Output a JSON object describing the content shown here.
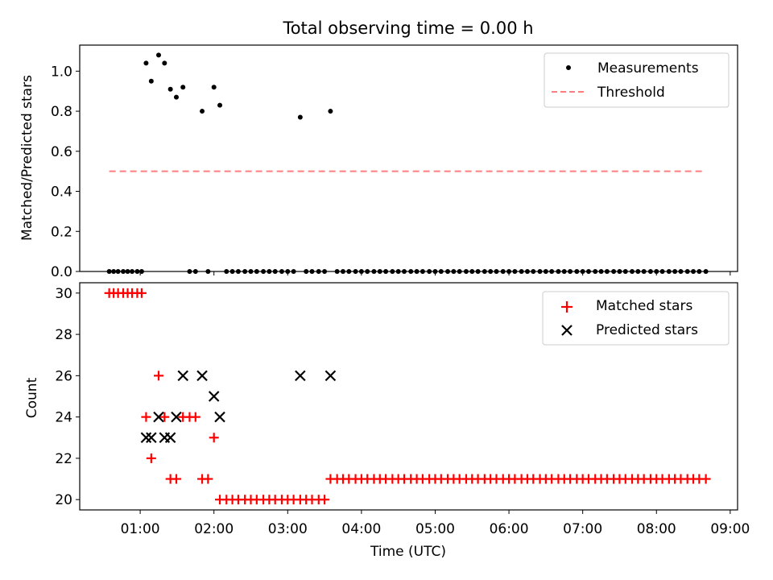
{
  "chart_data": [
    {
      "type": "scatter",
      "title": "Total observing time = 0.00 h",
      "xlabel": "",
      "ylabel": "Matched/Predicted stars",
      "xlim_hours": [
        0.18,
        9.1
      ],
      "ylim": [
        0,
        1.13
      ],
      "yticks": [
        0.0,
        0.2,
        0.4,
        0.6,
        0.8,
        1.0
      ],
      "ytick_labels": [
        "0.0",
        "0.2",
        "0.4",
        "0.6",
        "0.8",
        "1.0"
      ],
      "xticks_hours": [
        1,
        2,
        3,
        4,
        5,
        6,
        7,
        8,
        9
      ],
      "legend": {
        "placement": "top-right",
        "entries": [
          "Measurements",
          "Threshold"
        ]
      },
      "series": [
        {
          "name": "Measurements",
          "marker": "dot",
          "color": "#000000",
          "x": [
            0.58,
            0.64,
            0.7,
            0.77,
            0.83,
            0.89,
            0.96,
            1.02,
            1.08,
            1.15,
            1.25,
            1.33,
            1.41,
            1.49,
            1.58,
            1.67,
            1.75,
            1.84,
            1.92,
            2.0,
            2.08,
            2.17,
            2.25,
            2.33,
            2.42,
            2.5,
            2.58,
            2.67,
            2.75,
            2.83,
            2.92,
            3.0,
            3.08,
            3.17,
            3.25,
            3.33,
            3.42,
            3.5,
            3.58,
            3.67,
            3.75,
            3.83,
            3.92,
            4.0,
            4.08,
            4.17,
            4.25,
            4.33,
            4.42,
            4.5,
            4.58,
            4.67,
            4.75,
            4.83,
            4.92,
            5.0,
            5.08,
            5.17,
            5.25,
            5.33,
            5.42,
            5.5,
            5.58,
            5.67,
            5.75,
            5.83,
            5.92,
            6.0,
            6.08,
            6.17,
            6.25,
            6.33,
            6.42,
            6.5,
            6.58,
            6.67,
            6.75,
            6.83,
            6.92,
            7.0,
            7.08,
            7.17,
            7.25,
            7.33,
            7.42,
            7.5,
            7.58,
            7.67,
            7.75,
            7.83,
            7.92,
            8.0,
            8.08,
            8.17,
            8.25,
            8.33,
            8.42,
            8.5,
            8.58,
            8.67
          ],
          "y": [
            0,
            0,
            0,
            0,
            0,
            0,
            0,
            0,
            1.04,
            0.95,
            1.08,
            1.04,
            0.91,
            0.87,
            0.92,
            0,
            0,
            0.8,
            0,
            0.92,
            0.83,
            0,
            0,
            0,
            0,
            0,
            0,
            0,
            0,
            0,
            0,
            0,
            0,
            0.77,
            0,
            0,
            0,
            0,
            0.8,
            0,
            0,
            0,
            0,
            0,
            0,
            0,
            0,
            0,
            0,
            0,
            0,
            0,
            0,
            0,
            0,
            0,
            0,
            0,
            0,
            0,
            0,
            0,
            0,
            0,
            0,
            0,
            0,
            0,
            0,
            0,
            0,
            0,
            0,
            0,
            0,
            0,
            0,
            0,
            0,
            0,
            0,
            0,
            0,
            0,
            0,
            0,
            0,
            0,
            0,
            0,
            0,
            0,
            0,
            0,
            0,
            0,
            0,
            0,
            0,
            0
          ]
        },
        {
          "name": "Threshold",
          "type": "line",
          "style": "dashed",
          "color": "#ff7f7f",
          "x": [
            0.58,
            8.67
          ],
          "y": [
            0.5,
            0.5
          ]
        }
      ]
    },
    {
      "type": "scatter",
      "title": "",
      "xlabel": "Time (UTC)",
      "ylabel": "Count",
      "xlim_hours": [
        0.18,
        9.1
      ],
      "ylim": [
        19.5,
        30.5
      ],
      "yticks": [
        20,
        22,
        24,
        26,
        28,
        30
      ],
      "ytick_labels": [
        "20",
        "22",
        "24",
        "26",
        "28",
        "30"
      ],
      "xticks_hours": [
        1,
        2,
        3,
        4,
        5,
        6,
        7,
        8,
        9
      ],
      "xtick_labels": [
        "01:00",
        "02:00",
        "03:00",
        "04:00",
        "05:00",
        "06:00",
        "07:00",
        "08:00",
        "09:00"
      ],
      "legend": {
        "placement": "top-right",
        "entries": [
          "Matched stars",
          "Predicted stars"
        ]
      },
      "series": [
        {
          "name": "Matched stars",
          "marker": "plus",
          "color": "#ff0000",
          "x": [
            0.58,
            0.64,
            0.7,
            0.77,
            0.83,
            0.89,
            0.96,
            1.02,
            1.08,
            1.15,
            1.25,
            1.33,
            1.41,
            1.49,
            1.58,
            1.67,
            1.75,
            1.84,
            1.92,
            2.0,
            2.08,
            2.17,
            2.25,
            2.33,
            2.42,
            2.5,
            2.58,
            2.67,
            2.75,
            2.83,
            2.92,
            3.0,
            3.08,
            3.17,
            3.25,
            3.33,
            3.42,
            3.5,
            3.58,
            3.67,
            3.75,
            3.83,
            3.92,
            4.0,
            4.08,
            4.17,
            4.25,
            4.33,
            4.42,
            4.5,
            4.58,
            4.67,
            4.75,
            4.83,
            4.92,
            5.0,
            5.08,
            5.17,
            5.25,
            5.33,
            5.42,
            5.5,
            5.58,
            5.67,
            5.75,
            5.83,
            5.92,
            6.0,
            6.08,
            6.17,
            6.25,
            6.33,
            6.42,
            6.5,
            6.58,
            6.67,
            6.75,
            6.83,
            6.92,
            7.0,
            7.08,
            7.17,
            7.25,
            7.33,
            7.42,
            7.5,
            7.58,
            7.67,
            7.75,
            7.83,
            7.92,
            8.0,
            8.08,
            8.17,
            8.25,
            8.33,
            8.42,
            8.5,
            8.58,
            8.67
          ],
          "y": [
            30,
            30,
            30,
            30,
            30,
            30,
            30,
            30,
            24,
            22,
            26,
            24,
            21,
            21,
            24,
            24,
            24,
            21,
            21,
            23,
            20,
            20,
            20,
            20,
            20,
            20,
            20,
            20,
            20,
            20,
            20,
            20,
            20,
            20,
            20,
            20,
            20,
            20,
            21,
            21,
            21,
            21,
            21,
            21,
            21,
            21,
            21,
            21,
            21,
            21,
            21,
            21,
            21,
            21,
            21,
            21,
            21,
            21,
            21,
            21,
            21,
            21,
            21,
            21,
            21,
            21,
            21,
            21,
            21,
            21,
            21,
            21,
            21,
            21,
            21,
            21,
            21,
            21,
            21,
            21,
            21,
            21,
            21,
            21,
            21,
            21,
            21,
            21,
            21,
            21,
            21,
            21,
            21,
            21,
            21,
            21,
            21,
            21,
            21,
            21
          ]
        },
        {
          "name": "Predicted stars",
          "marker": "x",
          "color": "#000000",
          "x": [
            1.08,
            1.15,
            1.25,
            1.33,
            1.41,
            1.49,
            1.58,
            1.84,
            2.0,
            2.08,
            3.17,
            3.58
          ],
          "y": [
            23,
            23,
            24,
            23,
            23,
            24,
            26,
            26,
            25,
            24,
            26,
            26
          ]
        }
      ]
    }
  ]
}
